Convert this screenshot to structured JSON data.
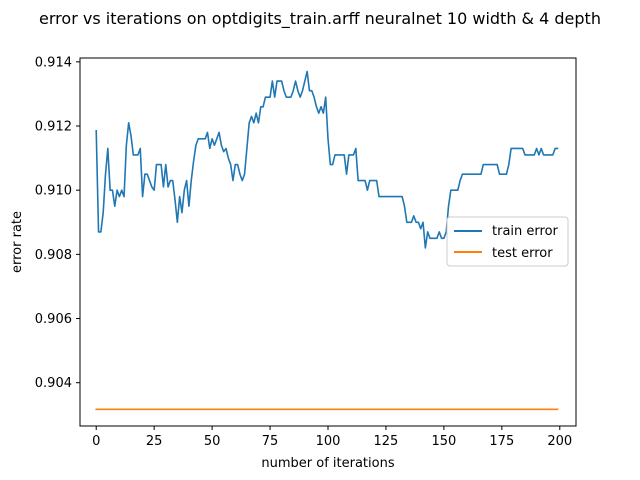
{
  "chart_data": {
    "type": "line",
    "title": "error vs iterations on optdigits_train.arff neuralnet 10 width & 4 depth",
    "xlabel": "number of iterations",
    "ylabel": "error rate",
    "xlim": [
      -7,
      207
    ],
    "ylim": [
      0.90265,
      0.91412
    ],
    "xticks": [
      0,
      25,
      50,
      75,
      100,
      125,
      150,
      175,
      200
    ],
    "yticks": [
      0.904,
      0.906,
      0.908,
      0.91,
      0.912,
      0.914
    ],
    "xtick_labels": [
      "0",
      "25",
      "50",
      "75",
      "100",
      "125",
      "150",
      "175",
      "200"
    ],
    "ytick_labels": [
      "0.904",
      "0.906",
      "0.908",
      "0.910",
      "0.912",
      "0.914"
    ],
    "grid": false,
    "legend_position": "center-right",
    "series": [
      {
        "name": "train error",
        "color": "#1f77b4",
        "x_start": 0,
        "x_step": 1,
        "values": [
          0.91185,
          0.9087,
          0.9087,
          0.9093,
          0.9105,
          0.9113,
          0.91,
          0.91,
          0.9095,
          0.91,
          0.9098,
          0.91,
          0.9098,
          0.9114,
          0.9121,
          0.9117,
          0.9111,
          0.9111,
          0.9111,
          0.9113,
          0.9098,
          0.9105,
          0.9105,
          0.9103,
          0.9101,
          0.91,
          0.9108,
          0.9108,
          0.9108,
          0.9101,
          0.9108,
          0.9101,
          0.9103,
          0.9103,
          0.9097,
          0.909,
          0.9098,
          0.9093,
          0.91,
          0.9103,
          0.9095,
          0.9103,
          0.9109,
          0.9114,
          0.9116,
          0.9116,
          0.9116,
          0.9116,
          0.9118,
          0.9113,
          0.9116,
          0.9114,
          0.9116,
          0.9118,
          0.9114,
          0.9112,
          0.9113,
          0.911,
          0.9108,
          0.9103,
          0.9108,
          0.9108,
          0.9105,
          0.9103,
          0.9105,
          0.9113,
          0.9121,
          0.9123,
          0.9121,
          0.9124,
          0.9121,
          0.9126,
          0.9126,
          0.9129,
          0.9129,
          0.9129,
          0.9134,
          0.9129,
          0.9134,
          0.9134,
          0.9134,
          0.9131,
          0.9129,
          0.9129,
          0.9129,
          0.9131,
          0.9134,
          0.9131,
          0.9129,
          0.9131,
          0.9134,
          0.9137,
          0.9131,
          0.9131,
          0.9129,
          0.9126,
          0.9124,
          0.9126,
          0.9124,
          0.9129,
          0.9116,
          0.9108,
          0.9108,
          0.9111,
          0.9111,
          0.9111,
          0.9111,
          0.9111,
          0.9105,
          0.9111,
          0.9111,
          0.9111,
          0.9113,
          0.9103,
          0.9103,
          0.9103,
          0.9103,
          0.91,
          0.9103,
          0.9103,
          0.9103,
          0.9103,
          0.9098,
          0.9098,
          0.9098,
          0.9098,
          0.9098,
          0.9098,
          0.9098,
          0.9098,
          0.9098,
          0.9098,
          0.9098,
          0.9095,
          0.909,
          0.909,
          0.909,
          0.9092,
          0.909,
          0.909,
          0.9088,
          0.909,
          0.9082,
          0.9087,
          0.9085,
          0.9085,
          0.9085,
          0.9085,
          0.9087,
          0.9085,
          0.9085,
          0.9087,
          0.9095,
          0.91,
          0.91,
          0.91,
          0.91,
          0.9103,
          0.9105,
          0.9105,
          0.9105,
          0.9105,
          0.9105,
          0.9105,
          0.9105,
          0.9105,
          0.9105,
          0.9108,
          0.9108,
          0.9108,
          0.9108,
          0.9108,
          0.9108,
          0.9108,
          0.9105,
          0.9105,
          0.9105,
          0.9105,
          0.9108,
          0.9113,
          0.9113,
          0.9113,
          0.9113,
          0.9113,
          0.9113,
          0.9111,
          0.9111,
          0.9111,
          0.9111,
          0.9111,
          0.9113,
          0.9111,
          0.9113,
          0.9111,
          0.9111,
          0.9111,
          0.9111,
          0.9111,
          0.9113,
          0.9113
        ]
      },
      {
        "name": "test error",
        "color": "#ff7f0e",
        "x_start": 0,
        "x_step": 1,
        "constant_value": 0.90317,
        "count": 200
      }
    ]
  }
}
